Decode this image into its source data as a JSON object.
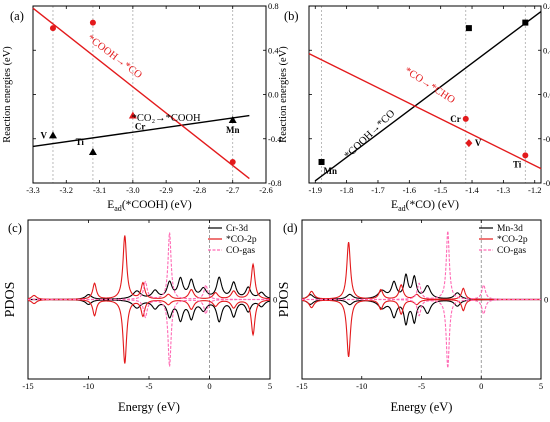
{
  "chart_data": [
    {
      "id": "a",
      "type": "scatter",
      "panel_label": "(a)",
      "xlabel": "E_ad(*COOH) (eV)",
      "ylabel": "Reaction energies (eV)",
      "xlim": [
        -3.3,
        -2.6
      ],
      "ylim": [
        -0.8,
        0.8
      ],
      "x_ticks": [
        -3.3,
        -3.2,
        -3.1,
        -3.0,
        -2.9,
        -2.8,
        -2.7,
        -2.6
      ],
      "y_ticks": [
        -0.8,
        -0.4,
        0.0,
        0.4,
        0.8
      ],
      "x_tick_labels": [
        "-3.3",
        "-3.2",
        "-3.1",
        "-3.0",
        "-2.9",
        "-2.8",
        "-2.7",
        "-2.6"
      ],
      "y_tick_labels": [
        "-0.8",
        "-0.4",
        "0.0",
        "0.4",
        "0.8"
      ],
      "vlines": [
        -3.24,
        -3.12,
        -3.0,
        -2.7
      ],
      "series": [
        {
          "label": "*CO₂→*COOH",
          "color": "#000000",
          "marker": "triangle",
          "line": [
            [
              -3.3,
              -0.47
            ],
            [
              -2.65,
              -0.19
            ]
          ],
          "points": [
            {
              "x": -3.24,
              "y": -0.37,
              "label": "V"
            },
            {
              "x": -3.12,
              "y": -0.52,
              "label": "Ti"
            },
            {
              "x": -2.7,
              "y": -0.23,
              "label": "Mn"
            }
          ]
        },
        {
          "label": "*COOH→*CO",
          "color": "#e31a1c",
          "marker": "circle",
          "line": [
            [
              -3.3,
              0.78
            ],
            [
              -2.65,
              -0.76
            ]
          ],
          "points": [
            {
              "x": -3.24,
              "y": 0.6
            },
            {
              "x": -3.12,
              "y": 0.65
            },
            {
              "x": -2.7,
              "y": -0.61
            }
          ]
        },
        {
          "label": "Cr",
          "color": "#e31a1c",
          "marker": "triangle",
          "points": [
            {
              "x": -3.0,
              "y": -0.19,
              "label": "Cr"
            }
          ]
        }
      ],
      "annotations": [
        {
          "text": "*COOH→*CO",
          "x": -3.06,
          "y": 0.32,
          "color": "#e31a1c",
          "rotate": 37
        },
        {
          "text": "*CO₂→*COOH",
          "x": -2.9,
          "y": -0.24,
          "color": "#000000",
          "rotate": 0
        }
      ]
    },
    {
      "id": "b",
      "type": "scatter",
      "panel_label": "(b)",
      "xlabel": "E_ad(*CO) (eV)",
      "ylabel": "Reaction energies (eV)",
      "xlim": [
        -1.92,
        -1.18
      ],
      "ylim": [
        -0.8,
        0.8
      ],
      "x_ticks": [
        -1.9,
        -1.8,
        -1.7,
        -1.6,
        -1.5,
        -1.4,
        -1.3,
        -1.2
      ],
      "y_ticks": [
        -0.8,
        -0.4,
        0.0,
        0.4,
        0.8
      ],
      "x_tick_labels": [
        "-1.9",
        "-1.8",
        "-1.7",
        "-1.6",
        "-1.5",
        "-1.4",
        "-1.3",
        "-1.2"
      ],
      "y_tick_labels": [
        "-0.8",
        "-0.4",
        "0.0",
        "0.4",
        "0.8"
      ],
      "vlines": [
        -1.88,
        -1.42,
        -1.23
      ],
      "series": [
        {
          "label": "*COOH→*CO",
          "color": "#000000",
          "marker": "square",
          "line": [
            [
              -1.9,
              -0.78
            ],
            [
              -1.18,
              0.75
            ]
          ],
          "points": [
            {
              "x": -1.88,
              "y": -0.61,
              "label": "Mn"
            },
            {
              "x": -1.41,
              "y": 0.6
            },
            {
              "x": -1.23,
              "y": 0.65
            }
          ]
        },
        {
          "label": "*CO→*CHO",
          "color": "#e31a1c",
          "marker": "circle",
          "line": [
            [
              -1.92,
              0.37
            ],
            [
              -1.18,
              -0.67
            ]
          ],
          "points": [
            {
              "x": -1.42,
              "y": -0.22,
              "label": "Cr"
            },
            {
              "x": -1.23,
              "y": -0.55,
              "label": "Ti"
            }
          ]
        },
        {
          "label": "V",
          "color": "#e31a1c",
          "marker": "diamond",
          "points": [
            {
              "x": -1.41,
              "y": -0.44,
              "label": "V"
            }
          ]
        }
      ],
      "annotations": [
        {
          "text": "*CO→*CHO",
          "x": -1.54,
          "y": 0.06,
          "color": "#e31a1c",
          "rotate": 33
        },
        {
          "text": "*COOH→*CO",
          "x": -1.72,
          "y": -0.38,
          "color": "#000000",
          "rotate": -44
        }
      ]
    },
    {
      "id": "c",
      "type": "line",
      "panel_label": "(c)",
      "xlabel": "Energy (eV)",
      "ylabel": "PDOS",
      "xlim": [
        -15,
        5
      ],
      "ylim": [
        -5,
        5
      ],
      "x_ticks": [
        -15,
        -10,
        -5,
        0,
        5
      ],
      "x_tick_labels": [
        "-15",
        "-10",
        "-5",
        "0",
        "5"
      ],
      "y_ticks": [
        0
      ],
      "y_tick_labels": [
        "0"
      ],
      "fermi_level": 0,
      "legend": "top-right",
      "series": [
        {
          "name": "Cr-3d",
          "color": "#000000",
          "style": "solid",
          "peaks": [
            [
              -10,
              0.3,
              0.3
            ],
            [
              -6,
              0.5,
              0.4
            ],
            [
              -4.5,
              0.5,
              0.3
            ],
            [
              -3.3,
              1.0,
              0.25
            ],
            [
              -2.4,
              1.2,
              0.25
            ],
            [
              -1.5,
              1.1,
              0.25
            ],
            [
              -0.5,
              0.6,
              0.3
            ],
            [
              0.8,
              1.3,
              0.25
            ],
            [
              2.0,
              1.0,
              0.25
            ],
            [
              3.2,
              0.7,
              0.25
            ],
            [
              4.3,
              0.4,
              0.3
            ]
          ]
        },
        {
          "name": "*CO-2p",
          "color": "#e31a1c",
          "style": "solid",
          "peaks": [
            [
              -14.5,
              0.25,
              0.25
            ],
            [
              -9.5,
              1.0,
              0.18
            ],
            [
              -7.0,
              4.0,
              0.18
            ],
            [
              -5.5,
              1.0,
              0.18
            ],
            [
              -3.4,
              0.3,
              0.25
            ],
            [
              -1.5,
              0.6,
              0.25
            ],
            [
              0.5,
              0.4,
              0.25
            ],
            [
              2.0,
              0.5,
              0.25
            ],
            [
              3.6,
              2.2,
              0.18
            ]
          ]
        },
        {
          "name": "CO-gas",
          "color": "#ff69b4",
          "style": "dashed",
          "peaks": [
            [
              -5.3,
              1.1,
              0.18
            ],
            [
              -3.3,
              4.2,
              0.15
            ],
            [
              -0.3,
              0.9,
              0.18
            ]
          ]
        }
      ]
    },
    {
      "id": "d",
      "type": "line",
      "panel_label": "(d)",
      "xlabel": "Energy (eV)",
      "ylabel": "PDOS",
      "xlim": [
        -15,
        5
      ],
      "ylim": [
        -5,
        5
      ],
      "x_ticks": [
        -15,
        -10,
        -5,
        0,
        5
      ],
      "x_tick_labels": [
        "-15",
        "-10",
        "-5",
        "0",
        "5"
      ],
      "y_ticks": [
        0
      ],
      "y_tick_labels": [
        "0"
      ],
      "fermi_level": 0,
      "legend": "top-right",
      "series": [
        {
          "name": "Mn-3d",
          "color": "#000000",
          "style": "solid",
          "peaks": [
            [
              -14.3,
              0.3,
              0.3
            ],
            [
              -11,
              0.3,
              0.3
            ],
            [
              -8.3,
              0.5,
              0.4
            ],
            [
              -7.3,
              1.0,
              0.25
            ],
            [
              -6.3,
              1.4,
              0.2
            ],
            [
              -5.6,
              1.3,
              0.2
            ],
            [
              -4.5,
              0.8,
              0.3
            ],
            [
              -2.0,
              0.4,
              0.3
            ]
          ]
        },
        {
          "name": "*CO-2p",
          "color": "#e31a1c",
          "style": "solid",
          "peaks": [
            [
              -14.2,
              0.5,
              0.25
            ],
            [
              -11.1,
              3.6,
              0.18
            ],
            [
              -8.4,
              0.6,
              0.2
            ],
            [
              -6.7,
              0.9,
              0.2
            ],
            [
              -5.4,
              0.3,
              0.25
            ],
            [
              -1.5,
              0.7,
              0.18
            ]
          ]
        },
        {
          "name": "CO-gas",
          "color": "#ff69b4",
          "style": "dashed",
          "peaks": [
            [
              -5.2,
              1.0,
              0.18
            ],
            [
              -2.8,
              4.3,
              0.15
            ],
            [
              0.2,
              0.9,
              0.18
            ]
          ]
        }
      ]
    }
  ]
}
